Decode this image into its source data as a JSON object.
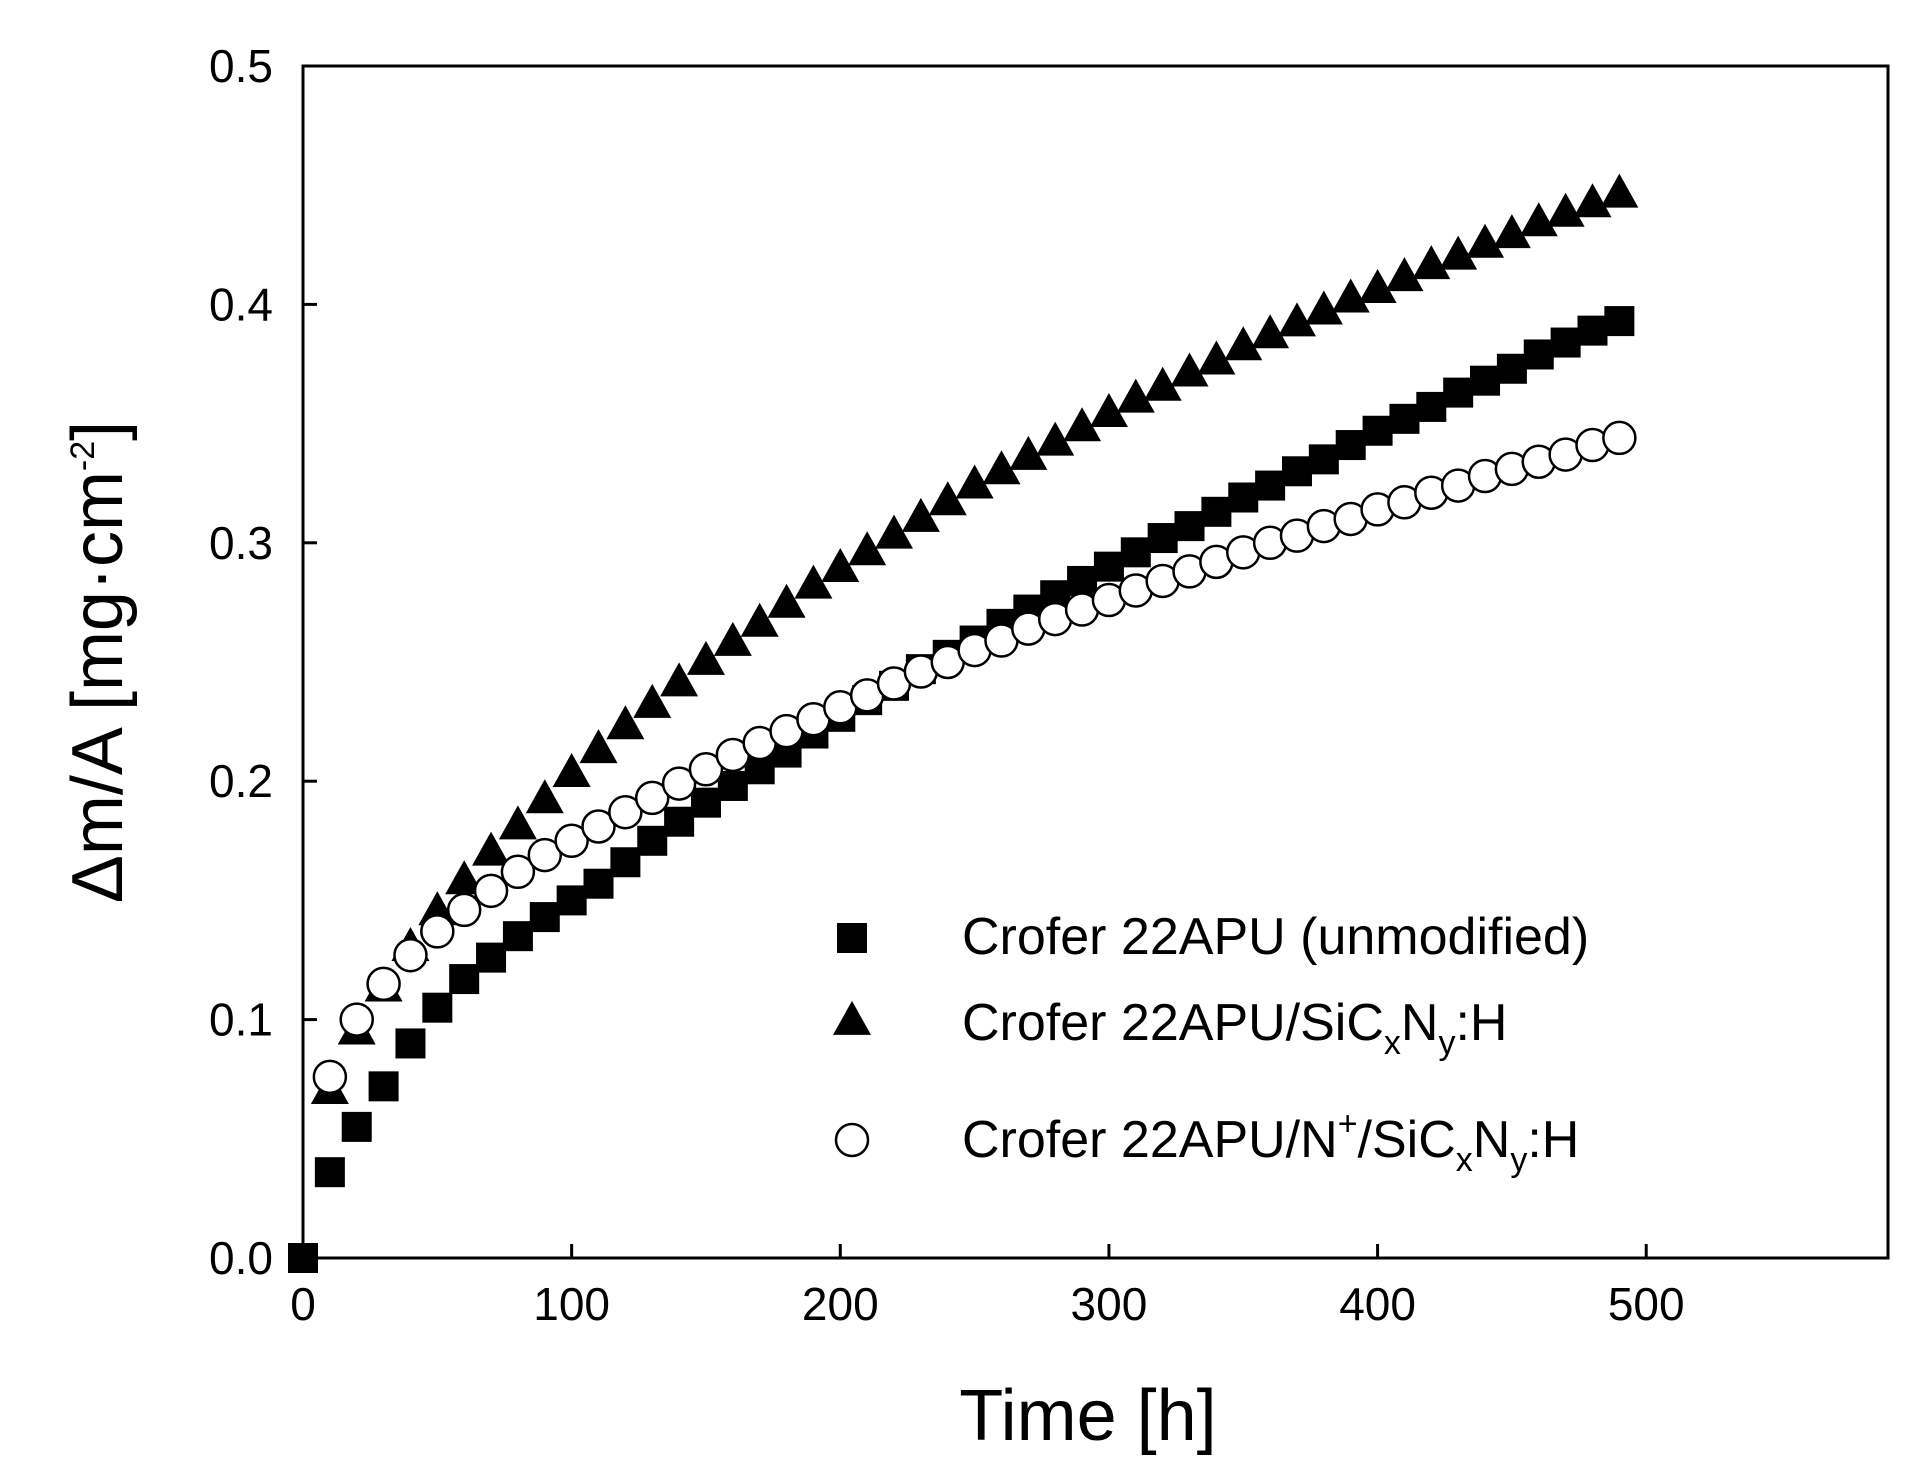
{
  "chart_data": {
    "type": "scatter",
    "xlabel": "Time [h]",
    "ylabel": {
      "main": "Δm/A [mg·cm",
      "sup": "-2",
      "close": "]"
    },
    "xlim": [
      0,
      590
    ],
    "ylim": [
      0.0,
      0.5
    ],
    "xticks": [
      "0",
      "100",
      "200",
      "300",
      "400",
      "500"
    ],
    "yticks": [
      "0.0",
      "0.1",
      "0.2",
      "0.3",
      "0.4",
      "0.5"
    ],
    "grid": false,
    "legend_position": "bottom-right",
    "series": [
      {
        "name": "Crofer 22APU (unmodified)",
        "marker": "filled-square",
        "color": "#000000",
        "x": [
          0,
          10,
          20,
          30,
          40,
          50,
          60,
          70,
          80,
          90,
          100,
          110,
          120,
          130,
          140,
          150,
          160,
          170,
          180,
          190,
          200,
          210,
          220,
          230,
          240,
          250,
          260,
          270,
          280,
          290,
          300,
          310,
          320,
          330,
          340,
          350,
          360,
          370,
          380,
          390,
          400,
          410,
          420,
          430,
          440,
          450,
          460,
          470,
          480,
          490
        ],
        "y": [
          0.0,
          0.036,
          0.055,
          0.072,
          0.09,
          0.105,
          0.117,
          0.126,
          0.135,
          0.143,
          0.15,
          0.157,
          0.166,
          0.175,
          0.183,
          0.191,
          0.198,
          0.205,
          0.212,
          0.22,
          0.227,
          0.234,
          0.24,
          0.247,
          0.253,
          0.259,
          0.266,
          0.272,
          0.278,
          0.284,
          0.29,
          0.296,
          0.302,
          0.307,
          0.313,
          0.319,
          0.324,
          0.33,
          0.335,
          0.341,
          0.347,
          0.352,
          0.357,
          0.363,
          0.368,
          0.373,
          0.379,
          0.384,
          0.389,
          0.393
        ]
      },
      {
        "name": "Crofer 22APU/SiC",
        "name_parts": [
          "Crofer 22APU/SiC",
          "x",
          "N",
          "y",
          ":H"
        ],
        "marker": "filled-triangle",
        "color": "#000000",
        "x": [
          10,
          20,
          30,
          40,
          50,
          60,
          70,
          80,
          90,
          100,
          110,
          120,
          130,
          140,
          150,
          160,
          170,
          180,
          190,
          200,
          210,
          220,
          230,
          240,
          250,
          260,
          270,
          280,
          290,
          300,
          310,
          320,
          330,
          340,
          350,
          360,
          370,
          380,
          390,
          400,
          410,
          420,
          430,
          440,
          450,
          460,
          470,
          480,
          490
        ],
        "y": [
          0.07,
          0.095,
          0.113,
          0.13,
          0.145,
          0.158,
          0.17,
          0.181,
          0.192,
          0.203,
          0.213,
          0.223,
          0.232,
          0.241,
          0.25,
          0.258,
          0.266,
          0.274,
          0.282,
          0.289,
          0.296,
          0.303,
          0.31,
          0.317,
          0.324,
          0.33,
          0.336,
          0.342,
          0.348,
          0.354,
          0.36,
          0.365,
          0.371,
          0.376,
          0.382,
          0.387,
          0.392,
          0.397,
          0.402,
          0.406,
          0.411,
          0.416,
          0.42,
          0.425,
          0.429,
          0.434,
          0.438,
          0.442,
          0.446
        ]
      },
      {
        "name": "Crofer 22APU/N",
        "name_parts": [
          "Crofer 22APU/N",
          "+",
          "/SiC",
          "x",
          "N",
          "y",
          ":H"
        ],
        "marker": "open-circle",
        "color": "#000000",
        "x": [
          10,
          20,
          30,
          40,
          50,
          60,
          70,
          80,
          90,
          100,
          110,
          120,
          130,
          140,
          150,
          160,
          170,
          180,
          190,
          200,
          210,
          220,
          230,
          240,
          250,
          260,
          270,
          280,
          290,
          300,
          310,
          320,
          330,
          340,
          350,
          360,
          370,
          380,
          390,
          400,
          410,
          420,
          430,
          440,
          450,
          460,
          470,
          480,
          490
        ],
        "y": [
          0.076,
          0.1,
          0.115,
          0.127,
          0.137,
          0.146,
          0.154,
          0.162,
          0.169,
          0.175,
          0.181,
          0.187,
          0.193,
          0.199,
          0.205,
          0.211,
          0.216,
          0.221,
          0.226,
          0.231,
          0.236,
          0.241,
          0.246,
          0.25,
          0.255,
          0.259,
          0.264,
          0.268,
          0.272,
          0.276,
          0.28,
          0.284,
          0.288,
          0.292,
          0.296,
          0.3,
          0.303,
          0.307,
          0.31,
          0.314,
          0.317,
          0.321,
          0.324,
          0.328,
          0.331,
          0.334,
          0.337,
          0.341,
          0.344
        ]
      }
    ]
  }
}
